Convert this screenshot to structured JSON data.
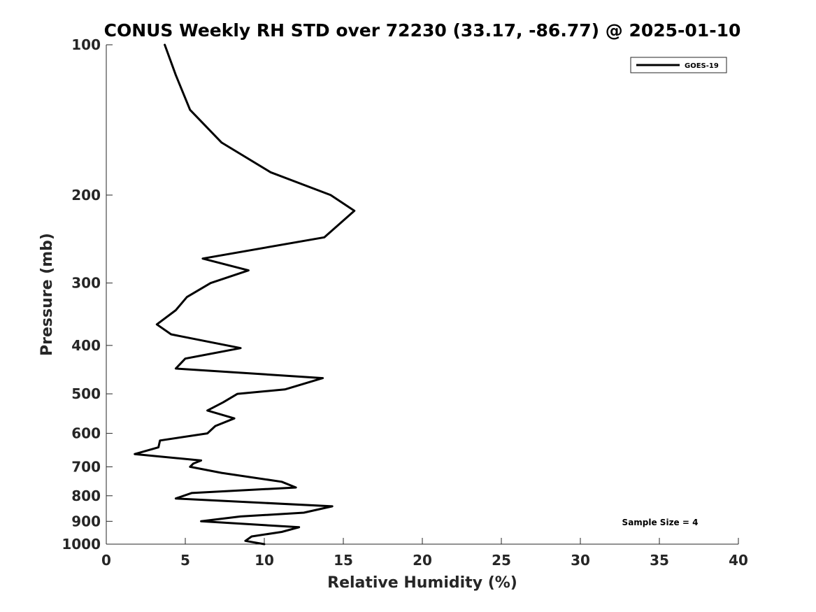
{
  "chart_data": {
    "type": "line",
    "title": "CONUS Weekly RH STD over 72230 (33.17, -86.77) @ 2025-01-10",
    "xlabel": "Relative Humidity (%)",
    "ylabel": "Pressure (mb)",
    "xlim": [
      0,
      40
    ],
    "ylim": [
      100,
      1000
    ],
    "yscale": "log-reversed",
    "xticks": [
      0,
      5,
      10,
      15,
      20,
      25,
      30,
      35,
      40
    ],
    "xtick_labels": [
      "0",
      "5",
      "10",
      "15",
      "20",
      "25",
      "30",
      "35",
      "40"
    ],
    "yticks": [
      100,
      200,
      300,
      400,
      500,
      600,
      700,
      800,
      900,
      1000
    ],
    "ytick_labels": [
      "100",
      "200",
      "300",
      "400",
      "500",
      "600",
      "700",
      "800",
      "900",
      "1000"
    ],
    "grid": false,
    "legend_position": "top-right",
    "annotation": "Sample Size = 4",
    "series": [
      {
        "name": "GOES-19",
        "color": "#000000",
        "x": [
          3.7,
          4.4,
          5.3,
          7.3,
          10.4,
          14.2,
          15.7,
          13.8,
          6.1,
          9.0,
          6.6,
          5.1,
          4.4,
          3.2,
          4.1,
          8.5,
          5.0,
          4.4,
          13.7,
          11.3,
          8.3,
          7.4,
          6.4,
          8.1,
          6.9,
          6.4,
          3.4,
          3.3,
          1.8,
          6.0,
          5.5,
          5.3,
          7.3,
          11.1,
          12.0,
          5.4,
          4.4,
          14.3,
          12.5,
          8.5,
          6.0,
          12.2,
          11.1,
          9.2,
          8.8,
          10.0
        ],
        "y": [
          100,
          115,
          135,
          157,
          180,
          200,
          215,
          243,
          268,
          283,
          300,
          320,
          340,
          363,
          380,
          405,
          425,
          445,
          465,
          490,
          500,
          520,
          540,
          560,
          580,
          600,
          620,
          640,
          660,
          680,
          690,
          700,
          720,
          750,
          770,
          790,
          810,
          840,
          865,
          880,
          900,
          925,
          945,
          965,
          985,
          1000
        ]
      }
    ]
  }
}
